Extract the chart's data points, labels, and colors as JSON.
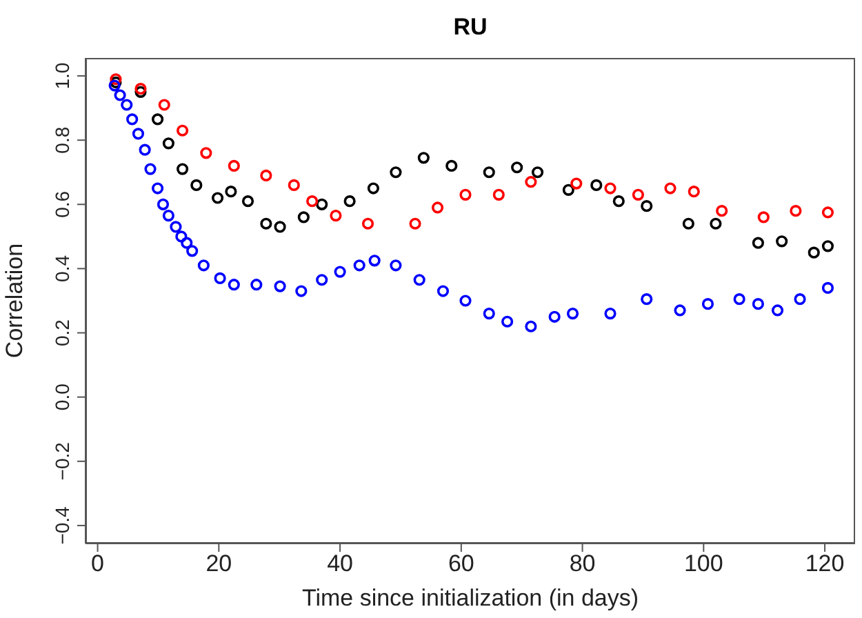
{
  "chart_data": {
    "type": "scatter",
    "title": "RU",
    "xlabel": "Time since initialization (in days)",
    "ylabel": "Correlation",
    "xlim": [
      -2,
      125
    ],
    "xticks": [
      0,
      20,
      40,
      60,
      80,
      100,
      120
    ],
    "ylim": [
      -0.456,
      1.056
    ],
    "yticks": [
      {
        "value": -0.4,
        "label": "−0.4"
      },
      {
        "value": -0.2,
        "label": "−0.2"
      },
      {
        "value": 0,
        "label": "0.0"
      },
      {
        "value": 0.2,
        "label": "0.2"
      },
      {
        "value": 0.4,
        "label": "0.4"
      },
      {
        "value": 0.6,
        "label": "0.6"
      },
      {
        "value": 0.8,
        "label": "0.8"
      },
      {
        "value": 1,
        "label": "1.0"
      }
    ],
    "grid": false,
    "legend": false,
    "marker": "circle",
    "series": [
      {
        "color": "#000000",
        "x": [
          3,
          7.1,
          9.9,
          11.7,
          14,
          16.3,
          19.8,
          22,
          24.8,
          27.8,
          30.1,
          34,
          37,
          41.6,
          45.5,
          49.2,
          53.8,
          58.4,
          64.6,
          69.2,
          72.6,
          77.7,
          82.3,
          86,
          90.6,
          97.5,
          102,
          109,
          112.9,
          118.2,
          120.5
        ],
        "values": [
          0.98,
          0.95,
          0.865,
          0.79,
          0.71,
          0.66,
          0.62,
          0.64,
          0.61,
          0.54,
          0.53,
          0.56,
          0.6,
          0.61,
          0.65,
          0.7,
          0.745,
          0.72,
          0.7,
          0.715,
          0.7,
          0.645,
          0.66,
          0.61,
          0.595,
          0.54,
          0.54,
          0.48,
          0.485,
          0.45,
          0.47
        ]
      },
      {
        "color": "#ff0000",
        "x": [
          3,
          7.1,
          11,
          14,
          17.9,
          22.5,
          27.8,
          32.4,
          35.4,
          39.3,
          44.6,
          52.4,
          56.1,
          60.7,
          66.2,
          71.5,
          79,
          84.6,
          89.2,
          94.5,
          98.4,
          103,
          109.9,
          115.2,
          120.5
        ],
        "values": [
          0.99,
          0.96,
          0.91,
          0.83,
          0.76,
          0.72,
          0.69,
          0.66,
          0.61,
          0.565,
          0.54,
          0.54,
          0.59,
          0.63,
          0.63,
          0.67,
          0.665,
          0.65,
          0.63,
          0.65,
          0.64,
          0.58,
          0.56,
          0.58,
          0.575
        ]
      },
      {
        "color": "#0000ff",
        "x": [
          2.8,
          3.7,
          4.8,
          5.7,
          6.7,
          7.8,
          8.7,
          9.9,
          10.8,
          11.7,
          12.9,
          13.8,
          14.7,
          15.6,
          17.5,
          20.2,
          22.5,
          26.2,
          30.1,
          33.6,
          37,
          40,
          43.2,
          45.7,
          49.2,
          53.1,
          57,
          60.7,
          64.6,
          67.6,
          71.5,
          75.4,
          78.4,
          84.6,
          90.6,
          96.1,
          100.7,
          105.9,
          109,
          112.2,
          115.9,
          120.5
        ],
        "values": [
          0.97,
          0.94,
          0.91,
          0.865,
          0.82,
          0.77,
          0.71,
          0.65,
          0.6,
          0.565,
          0.53,
          0.5,
          0.48,
          0.455,
          0.41,
          0.37,
          0.35,
          0.35,
          0.345,
          0.33,
          0.365,
          0.39,
          0.41,
          0.425,
          0.41,
          0.365,
          0.33,
          0.3,
          0.26,
          0.235,
          0.22,
          0.25,
          0.26,
          0.26,
          0.305,
          0.27,
          0.29,
          0.305,
          0.29,
          0.27,
          0.305,
          0.34
        ]
      }
    ]
  }
}
